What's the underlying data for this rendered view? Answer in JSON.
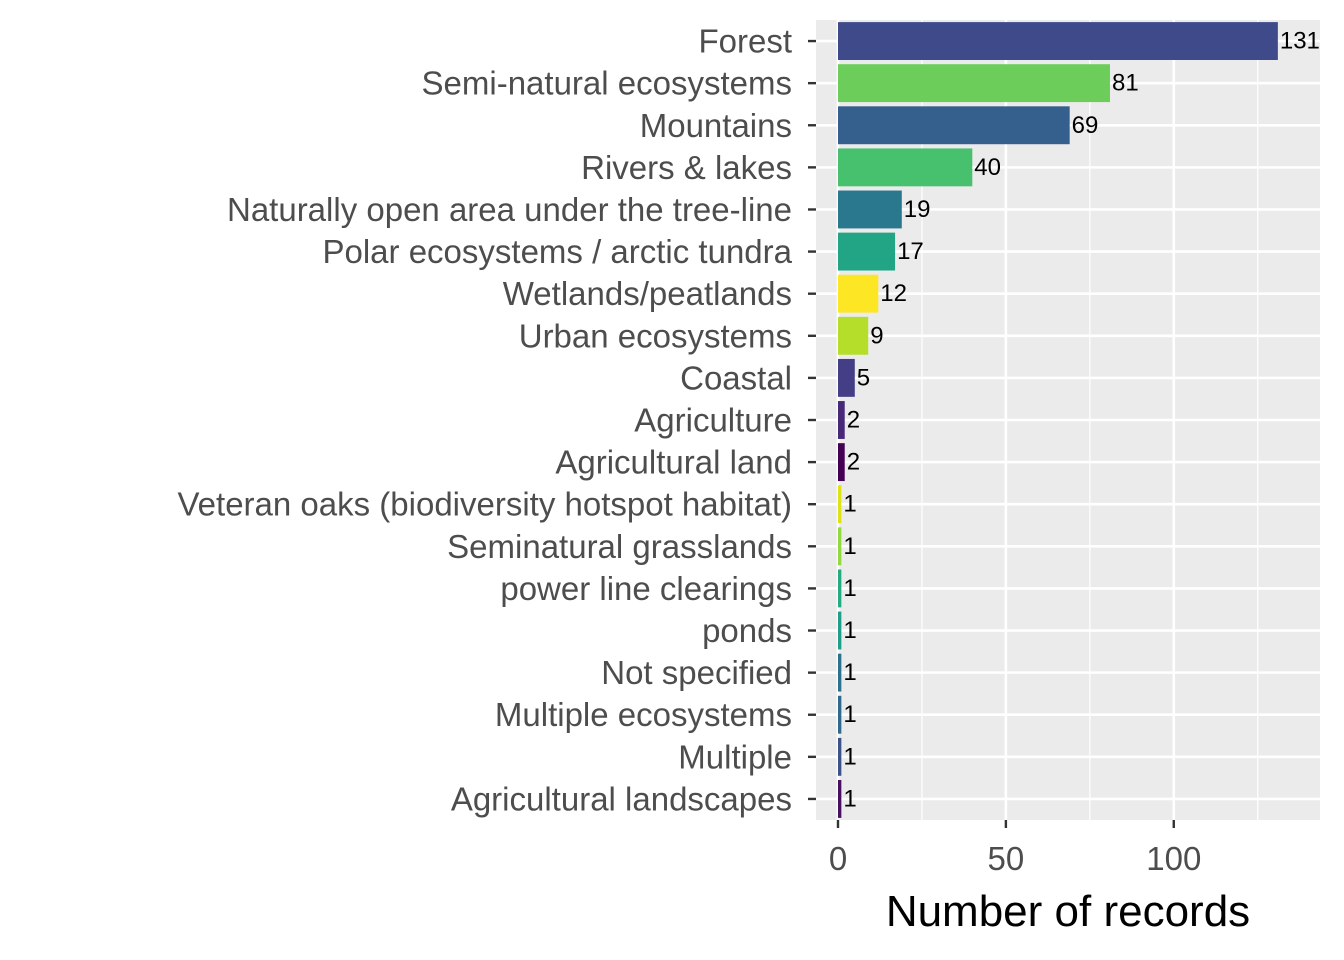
{
  "chart_data": {
    "type": "bar",
    "orientation": "horizontal",
    "title": "",
    "xlabel": "Number of records",
    "ylabel": "",
    "xlim": [
      -6.55,
      143.55
    ],
    "x_ticks": [
      0,
      50,
      100
    ],
    "x_tick_labels": [
      "0",
      "50",
      "100"
    ],
    "grid": true,
    "legend": "none",
    "panel_background": "#ebebeb",
    "grid_color": "#ffffff",
    "categories": [
      "Forest",
      "Semi-natural ecosystems",
      "Mountains",
      "Rivers & lakes",
      "Naturally open area under the tree-line",
      "Polar ecosystems / arctic tundra",
      "Wetlands/peatlands",
      "Urban ecosystems",
      "Coastal",
      "Agriculture",
      "Agricultural land",
      "Veteran oaks (biodiversity hotspot habitat)",
      "Seminatural grasslands",
      "power line clearings",
      "ponds",
      "Not specified",
      "Multiple ecosystems",
      "Multiple",
      "Agricultural landscapes"
    ],
    "values": [
      131,
      81,
      69,
      40,
      19,
      17,
      12,
      9,
      5,
      2,
      2,
      1,
      1,
      1,
      1,
      1,
      1,
      1,
      1
    ],
    "value_labels": [
      "131",
      "81",
      "69",
      "40",
      "19",
      "17",
      "12",
      "9",
      "5",
      "2",
      "2",
      "1",
      "1",
      "1",
      "1",
      "1",
      "1",
      "1",
      "1"
    ],
    "colors": [
      "#3e4a89",
      "#6ccd5a",
      "#35608d",
      "#48c16e",
      "#2a788e",
      "#21a585",
      "#fde725",
      "#b5de2b",
      "#433e85",
      "#482878",
      "#440154",
      "#dde318",
      "#94d840",
      "#25ab82",
      "#1f9e89",
      "#2c728e",
      "#31688e",
      "#3b528b",
      "#471063"
    ]
  }
}
